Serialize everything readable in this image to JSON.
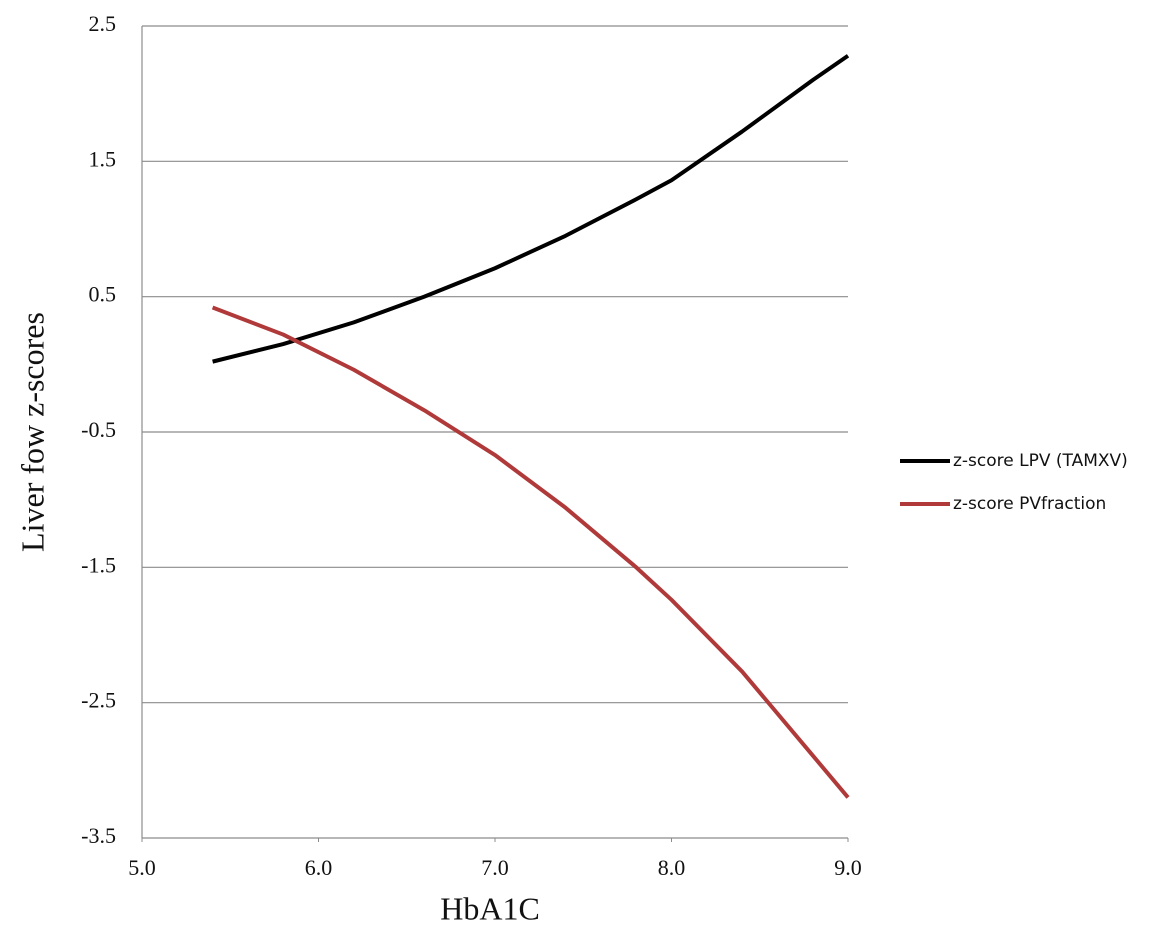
{
  "chart_data": {
    "type": "line",
    "x_label": "HbA1C",
    "y_label": "Liver fow z-scores",
    "x": [
      5.4,
      5.8,
      6.2,
      6.6,
      7.0,
      7.4,
      7.8,
      8.0,
      8.4,
      8.8,
      9.0
    ],
    "series": [
      {
        "name": "z-score LPV (TAMXV)",
        "color": "#000000",
        "values": [
          0.02,
          0.15,
          0.31,
          0.5,
          0.71,
          0.95,
          1.22,
          1.36,
          1.72,
          2.1,
          2.28
        ]
      },
      {
        "name": "z-score PVfraction",
        "color": "#b03a3a",
        "values": [
          0.42,
          0.22,
          -0.04,
          -0.34,
          -0.67,
          -1.06,
          -1.5,
          -1.74,
          -2.27,
          -2.89,
          -3.2
        ]
      }
    ],
    "xlim": [
      5.0,
      9.0
    ],
    "xticks": [
      {
        "value": 5,
        "label": "5.0"
      },
      {
        "value": 6,
        "label": "6.0"
      },
      {
        "value": 7,
        "label": "7.0"
      },
      {
        "value": 8,
        "label": "8.0"
      },
      {
        "value": 9,
        "label": "9.0"
      }
    ],
    "ylim": [
      -3.5,
      2.5
    ],
    "yticks": [
      2.5,
      1.5,
      0.5,
      -0.5,
      -1.5,
      -2.5,
      -3.5
    ],
    "grid": true,
    "legend": "right"
  }
}
